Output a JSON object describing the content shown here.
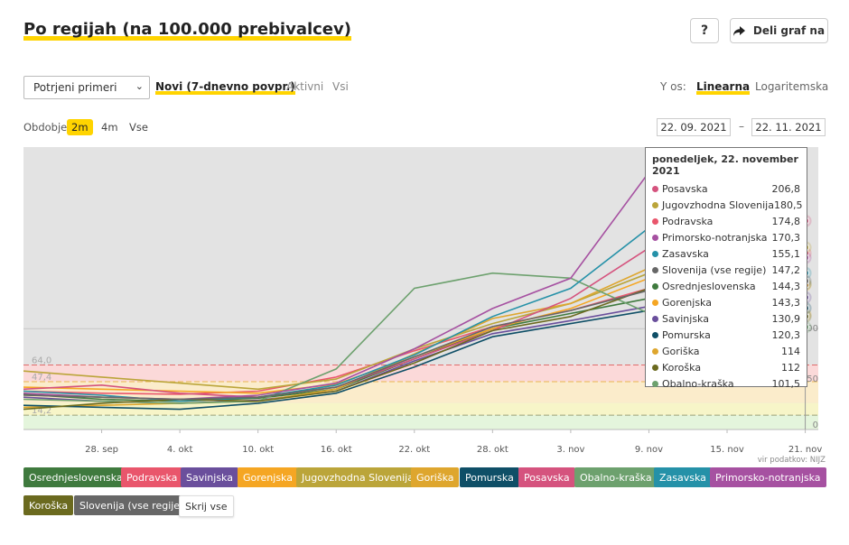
{
  "header": {
    "title": "Po regijah (na 100.000 prebivalcev)",
    "help_label": "?",
    "share_label": "Deli graf na"
  },
  "controls": {
    "select_value": "Potrjeni primeri",
    "modes": [
      "Novi (7-dnevno povpr.)",
      "Aktivni",
      "Vsi"
    ],
    "active_mode": "Novi (7-dnevno povpr.)",
    "y_axis_label": "Y os:",
    "y_axis_options": [
      "Linearna",
      "Logaritemska"
    ],
    "y_axis_active": "Linearna",
    "period_label": "Obdobje",
    "periods": [
      "2m",
      "4m",
      "Vse"
    ],
    "active_period": "2m",
    "date_from": "22. 09. 2021",
    "date_separator": "–",
    "date_to": "22. 11. 2021"
  },
  "tooltip": {
    "title": "ponedeljek, 22. november 2021",
    "rows": [
      {
        "name": "Posavska",
        "value": "206,8",
        "color": "#d5537e"
      },
      {
        "name": "Jugovzhodna Slovenija",
        "value": "180,5",
        "color": "#bba53a"
      },
      {
        "name": "Podravska",
        "value": "174,8",
        "color": "#e9566c"
      },
      {
        "name": "Primorsko-notranjska",
        "value": "170,3",
        "color": "#a651a1"
      },
      {
        "name": "Zasavska",
        "value": "155,1",
        "color": "#2591a8"
      },
      {
        "name": "Slovenija (vse regije)",
        "value": "147,2",
        "color": "#676767"
      },
      {
        "name": "Osrednjeslovenska",
        "value": "144,3",
        "color": "#3f7a3e"
      },
      {
        "name": "Gorenjska",
        "value": "143,3",
        "color": "#f5a623"
      },
      {
        "name": "Savinjska",
        "value": "130,9",
        "color": "#6a4f9c"
      },
      {
        "name": "Pomurska",
        "value": "120,3",
        "color": "#0f4f67"
      },
      {
        "name": "Goriška",
        "value": "114",
        "color": "#dea62e"
      },
      {
        "name": "Koroška",
        "value": "112",
        "color": "#6b6a1f"
      },
      {
        "name": "Obalno-kraška",
        "value": "101,5",
        "color": "#6da16e"
      }
    ]
  },
  "legend": {
    "items": [
      {
        "name": "Osrednjeslovenska",
        "color": "#3f7a3e"
      },
      {
        "name": "Podravska",
        "color": "#e9566c"
      },
      {
        "name": "Savinjska",
        "color": "#6a4f9c"
      },
      {
        "name": "Gorenjska",
        "color": "#f5a623"
      },
      {
        "name": "Jugovzhodna Slovenija",
        "color": "#bba53a"
      },
      {
        "name": "Goriška",
        "color": "#dea62e"
      },
      {
        "name": "Pomurska",
        "color": "#0f4f67"
      },
      {
        "name": "Posavska",
        "color": "#d5537e"
      },
      {
        "name": "Obalno-kraška",
        "color": "#6da16e"
      },
      {
        "name": "Zasavska",
        "color": "#2591a8"
      },
      {
        "name": "Primorsko-notranjska",
        "color": "#a651a1"
      },
      {
        "name": "Koroška",
        "color": "#6b6a1f"
      },
      {
        "name": "Slovenija (vse regije)",
        "color": "#676767"
      }
    ],
    "hide_label": "Skrij vse"
  },
  "source": "vir podatkov: NIJZ",
  "chart_data": {
    "type": "line",
    "x_ticks": [
      "28. sep",
      "4. okt",
      "10. okt",
      "16. okt",
      "22. okt",
      "28. okt",
      "3. nov",
      "9. nov",
      "15. nov",
      "21. nov"
    ],
    "x_tick_days": [
      6,
      12,
      18,
      24,
      30,
      36,
      42,
      48,
      54,
      60
    ],
    "x_range_days": [
      0,
      61
    ],
    "x_start_date": "2021-09-22",
    "ylim": [
      0,
      280
    ],
    "y_right_ticks": [
      "0",
      "50",
      "100"
    ],
    "threshold_labels": [
      "64,0",
      "47,4",
      "14,2"
    ],
    "thresholds": [
      64.0,
      47.4,
      14.2
    ],
    "series": [
      {
        "name": "Osrednjeslovenska",
        "values": [
          [
            0,
            35
          ],
          [
            6,
            30
          ],
          [
            12,
            28
          ],
          [
            18,
            31
          ],
          [
            24,
            40
          ],
          [
            30,
            70
          ],
          [
            36,
            100
          ],
          [
            42,
            115
          ],
          [
            48,
            130
          ],
          [
            54,
            138
          ],
          [
            60,
            144.3
          ]
        ]
      },
      {
        "name": "Podravska",
        "values": [
          [
            0,
            38
          ],
          [
            6,
            36
          ],
          [
            12,
            35
          ],
          [
            18,
            38
          ],
          [
            24,
            52
          ],
          [
            30,
            78
          ],
          [
            36,
            102
          ],
          [
            42,
            118
          ],
          [
            48,
            140
          ],
          [
            54,
            160
          ],
          [
            60,
            174.8
          ]
        ]
      },
      {
        "name": "Savinjska",
        "values": [
          [
            0,
            32
          ],
          [
            6,
            28
          ],
          [
            12,
            26
          ],
          [
            18,
            29
          ],
          [
            24,
            38
          ],
          [
            30,
            68
          ],
          [
            36,
            95
          ],
          [
            42,
            108
          ],
          [
            48,
            122
          ],
          [
            54,
            128
          ],
          [
            60,
            130.9
          ]
        ]
      },
      {
        "name": "Gorenjska",
        "values": [
          [
            0,
            42
          ],
          [
            6,
            40
          ],
          [
            12,
            38
          ],
          [
            18,
            36
          ],
          [
            24,
            45
          ],
          [
            30,
            72
          ],
          [
            36,
            100
          ],
          [
            42,
            120
          ],
          [
            48,
            150
          ],
          [
            54,
            148
          ],
          [
            60,
            143.3
          ]
        ]
      },
      {
        "name": "Jugovzhodna Slovenija",
        "values": [
          [
            0,
            58
          ],
          [
            6,
            52
          ],
          [
            12,
            46
          ],
          [
            18,
            40
          ],
          [
            24,
            50
          ],
          [
            30,
            80
          ],
          [
            36,
            105
          ],
          [
            42,
            125
          ],
          [
            48,
            155
          ],
          [
            54,
            170
          ],
          [
            60,
            180.5
          ]
        ]
      },
      {
        "name": "Goriška",
        "values": [
          [
            0,
            22
          ],
          [
            6,
            24
          ],
          [
            12,
            26
          ],
          [
            18,
            28
          ],
          [
            24,
            40
          ],
          [
            30,
            75
          ],
          [
            36,
            110
          ],
          [
            42,
            125
          ],
          [
            48,
            160
          ],
          [
            54,
            130
          ],
          [
            60,
            114
          ]
        ]
      },
      {
        "name": "Pomurska",
        "values": [
          [
            0,
            24
          ],
          [
            6,
            22
          ],
          [
            12,
            20
          ],
          [
            18,
            26
          ],
          [
            24,
            36
          ],
          [
            30,
            62
          ],
          [
            36,
            92
          ],
          [
            42,
            105
          ],
          [
            48,
            118
          ],
          [
            54,
            121
          ],
          [
            60,
            120.3
          ]
        ]
      },
      {
        "name": "Posavska",
        "values": [
          [
            0,
            40
          ],
          [
            6,
            44
          ],
          [
            12,
            36
          ],
          [
            18,
            32
          ],
          [
            24,
            42
          ],
          [
            30,
            70
          ],
          [
            36,
            98
          ],
          [
            42,
            130
          ],
          [
            48,
            180
          ],
          [
            54,
            230
          ],
          [
            60,
            206.8
          ]
        ]
      },
      {
        "name": "Obalno-kraška",
        "values": [
          [
            0,
            30
          ],
          [
            6,
            28
          ],
          [
            12,
            26
          ],
          [
            18,
            28
          ],
          [
            24,
            60
          ],
          [
            30,
            140
          ],
          [
            36,
            155
          ],
          [
            42,
            150
          ],
          [
            48,
            115
          ],
          [
            54,
            105
          ],
          [
            60,
            101.5
          ]
        ]
      },
      {
        "name": "Zasavska",
        "values": [
          [
            0,
            38
          ],
          [
            6,
            34
          ],
          [
            12,
            28
          ],
          [
            18,
            32
          ],
          [
            24,
            44
          ],
          [
            30,
            74
          ],
          [
            36,
            112
          ],
          [
            42,
            140
          ],
          [
            48,
            200
          ],
          [
            54,
            165
          ],
          [
            60,
            155.1
          ]
        ]
      },
      {
        "name": "Primorsko-notranjska",
        "values": [
          [
            0,
            36
          ],
          [
            6,
            32
          ],
          [
            12,
            30
          ],
          [
            18,
            34
          ],
          [
            24,
            46
          ],
          [
            30,
            80
          ],
          [
            36,
            120
          ],
          [
            42,
            150
          ],
          [
            48,
            255
          ],
          [
            54,
            190
          ],
          [
            60,
            170.3
          ]
        ]
      },
      {
        "name": "Koroška",
        "values": [
          [
            0,
            20
          ],
          [
            6,
            26
          ],
          [
            12,
            30
          ],
          [
            18,
            28
          ],
          [
            24,
            38
          ],
          [
            30,
            66
          ],
          [
            36,
            98
          ],
          [
            42,
            112
          ],
          [
            48,
            140
          ],
          [
            54,
            118
          ],
          [
            60,
            112
          ]
        ]
      },
      {
        "name": "Slovenija (vse regije)",
        "values": [
          [
            0,
            34
          ],
          [
            6,
            32
          ],
          [
            12,
            30
          ],
          [
            18,
            32
          ],
          [
            24,
            42
          ],
          [
            30,
            72
          ],
          [
            36,
            102
          ],
          [
            42,
            118
          ],
          [
            48,
            138
          ],
          [
            54,
            145
          ],
          [
            60,
            147.2
          ]
        ]
      }
    ]
  }
}
